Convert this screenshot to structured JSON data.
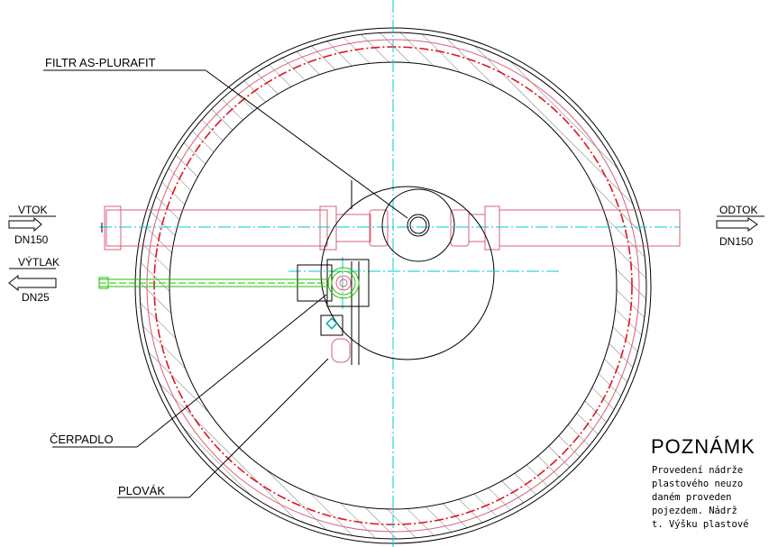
{
  "labels": {
    "filter": "FILTR AS-PLURAFIT",
    "inflow": "VTOK",
    "inflow_dn": "DN150",
    "outflow": "ODTOK",
    "outflow_dn": "DN150",
    "pressure": "VÝTLAK",
    "pressure_dn": "DN25",
    "pump": "ČERPADLO",
    "float": "PLOVÁK"
  },
  "notes": {
    "title": "POZNÁMK",
    "lines": [
      "Provedení nádrže",
      "plastového neuzo",
      "daném proveden",
      "pojezdem. Nádrž",
      "t. Výšku plastové"
    ]
  },
  "colors": {
    "axis": "#00c8d8",
    "outline": "#000000",
    "pipe": "#d86078",
    "red_dashed": "#e0141e",
    "pressure_pipe": "#22c000"
  }
}
